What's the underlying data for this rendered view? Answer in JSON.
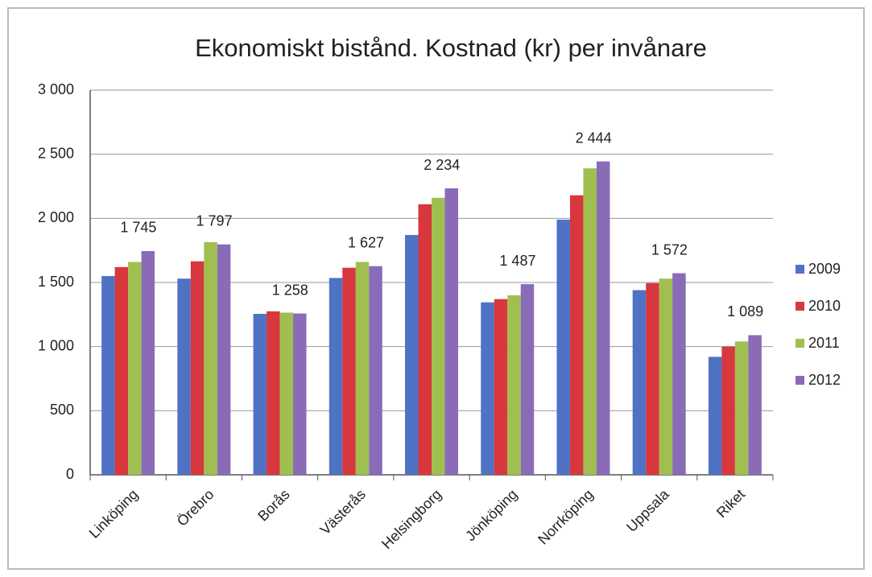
{
  "chart_data": {
    "type": "bar",
    "title": "Ekonomiskt bistånd. Kostnad (kr) per invånare",
    "categories": [
      "Linköping",
      "Örebro",
      "Borås",
      "Västerås",
      "Helsingborg",
      "Jönköping",
      "Norrköping",
      "Uppsala",
      "Riket"
    ],
    "series": [
      {
        "name": "2009",
        "color": "#4f72c4",
        "values": [
          1550,
          1530,
          1255,
          1535,
          1870,
          1345,
          1990,
          1440,
          920
        ]
      },
      {
        "name": "2010",
        "color": "#d8373d",
        "values": [
          1620,
          1665,
          1275,
          1615,
          2110,
          1370,
          2180,
          1495,
          1000
        ]
      },
      {
        "name": "2011",
        "color": "#a0bf50",
        "values": [
          1660,
          1815,
          1265,
          1660,
          2160,
          1400,
          2390,
          1530,
          1040
        ]
      },
      {
        "name": "2012",
        "color": "#8a6bb8",
        "values": [
          1745,
          1797,
          1258,
          1627,
          2234,
          1487,
          2444,
          1572,
          1089
        ],
        "value_labels": [
          "1 745",
          "1 797",
          "1 258",
          "1 627",
          "2 234",
          "1 487",
          "2 444",
          "1 572",
          "1 089"
        ]
      }
    ],
    "ylim": [
      0,
      3000
    ],
    "yticks": [
      0,
      500,
      {
        "value": 1000,
        "label": "1 000"
      },
      {
        "value": 1500,
        "label": "1 500"
      },
      {
        "value": 2000,
        "label": "2 000"
      },
      {
        "value": 2500,
        "label": "2 500"
      },
      {
        "value": 3000,
        "label": "3 000"
      }
    ],
    "grid": true,
    "legend": "right"
  }
}
